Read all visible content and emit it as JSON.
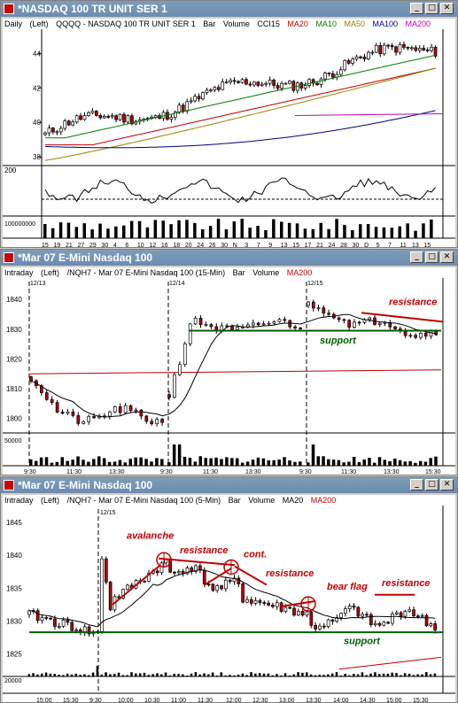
{
  "colors": {
    "ma20": "#c00000",
    "ma10": "#008000",
    "ma50": "#a08000",
    "ma100": "#000080",
    "ma200": "#c000c0",
    "support": "#006000",
    "annot": "#c00000"
  },
  "w1": {
    "title": "*NASDAQ 100 TR UNIT SER 1",
    "info": {
      "period": "Daily",
      "axis": "(Left)",
      "sym": "QQQQ - NASDAQ 100 TR UNIT SER 1",
      "bar": "Bar",
      "vol": "Volume",
      "cci": "CCI15",
      "ma20": "MA20",
      "ma10": "MA10",
      "ma50": "MA50",
      "ma100": "MA100",
      "ma200": "MA200"
    },
    "yticks": [
      "44",
      "42",
      "40",
      "38"
    ],
    "cci_tick": "200",
    "vol_tick": "100000000",
    "xticks": [
      "15",
      "19",
      "21",
      "27",
      "29",
      "30",
      "4",
      "6",
      "10",
      "12",
      "16",
      "18",
      "20",
      "24",
      "26",
      "30",
      "N",
      "3",
      "7",
      "9",
      "13",
      "15",
      "17",
      "21",
      "24",
      "28",
      "30",
      "D",
      "5",
      "7",
      "11",
      "13",
      "15"
    ]
  },
  "w2": {
    "title": "*Mar 07  E-Mini Nasdaq 100",
    "info": {
      "period": "Intraday",
      "axis": "(Left)",
      "sym": "/NQH7 - Mar 07  E-Mini Nasdaq 100  (15-Min)",
      "bar": "Bar",
      "vol": "Volume",
      "ma": "MA200"
    },
    "dates": [
      "12/13",
      "12/14",
      "12/15"
    ],
    "yticks": [
      "1840",
      "1830",
      "1820",
      "1810",
      "1800"
    ],
    "vol_tick": "50000",
    "xticks": [
      "9:30",
      "11:30",
      "13:30",
      "9:30",
      "11:30",
      "13:30",
      "9:30",
      "11:30",
      "13:30",
      "15:30"
    ],
    "labels": {
      "resistance": "resistance",
      "support": "support"
    }
  },
  "w3": {
    "title": "*Mar 07  E-Mini Nasdaq 100",
    "info": {
      "period": "Intraday",
      "axis": "(Left)",
      "sym": "/NQH7 - Mar 07  E-Mini Nasdaq 100  (5-Min)",
      "bar": "Bar",
      "vol": "Volume",
      "ma20": "MA20",
      "ma200": "MA200"
    },
    "date": "12/15",
    "yticks": [
      "1845",
      "1840",
      "1835",
      "1830",
      "1825"
    ],
    "vol_tick": "20000",
    "xticks": [
      "15:00",
      "15:30",
      "9:30",
      "10:00",
      "10:30",
      "11:00",
      "11:30",
      "12:00",
      "12:30",
      "13:00",
      "13:30",
      "14:00",
      "14:30",
      "15:00",
      "15:30"
    ],
    "labels": {
      "avalanche": "avalanche",
      "resistance1": "resistance",
      "cont": "cont.",
      "resistance2": "resistance",
      "bearflag": "bear flag",
      "resistance3": "resistance",
      "support": "support"
    }
  }
}
